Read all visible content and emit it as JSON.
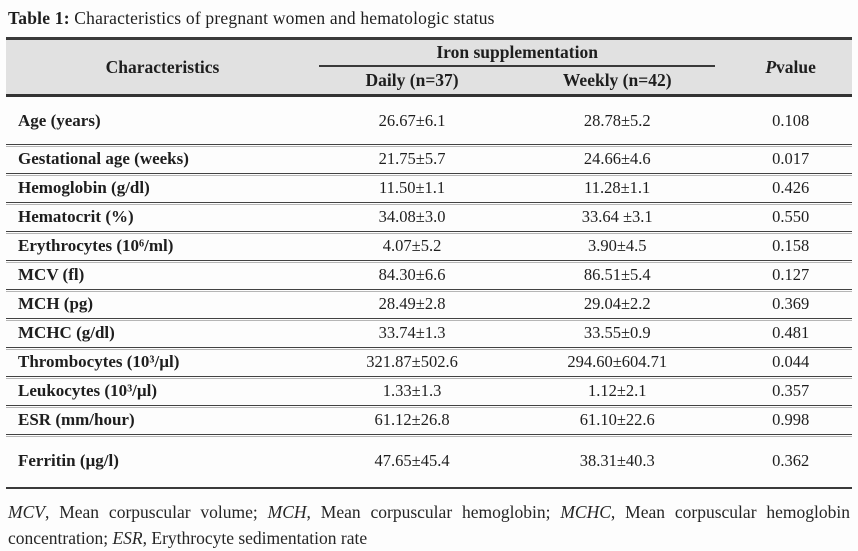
{
  "title": {
    "label": "Table 1:",
    "text": " Characteristics of pregnant women and hematologic status"
  },
  "table": {
    "header": {
      "characteristics": "Characteristics",
      "group": "Iron supplementation",
      "daily": "Daily (n=37)",
      "weekly": "Weekly (n=42)",
      "p_italic": "P",
      "p_rest": " value"
    },
    "rows": [
      {
        "label": "Age (years)",
        "daily": "26.67±6.1",
        "weekly": "28.78±5.2",
        "p": "0.108"
      },
      {
        "label": "Gestational age (weeks)",
        "daily": "21.75±5.7",
        "weekly": "24.66±4.6",
        "p": "0.017"
      },
      {
        "label": "Hemoglobin (g/dl)",
        "daily": "11.50±1.1",
        "weekly": "11.28±1.1",
        "p": "0.426"
      },
      {
        "label": "Hematocrit (%)",
        "daily": "34.08±3.0",
        "weekly": "33.64 ±3.1",
        "p": "0.550"
      },
      {
        "label": "Erythrocytes (10⁶/ml)",
        "daily": "4.07±5.2",
        "weekly": "3.90±4.5",
        "p": "0.158"
      },
      {
        "label": "MCV (fl)",
        "daily": "84.30±6.6",
        "weekly": "86.51±5.4",
        "p": "0.127"
      },
      {
        "label": "MCH (pg)",
        "daily": "28.49±2.8",
        "weekly": "29.04±2.2",
        "p": "0.369"
      },
      {
        "label": "MCHC (g/dl)",
        "daily": "33.74±1.3",
        "weekly": "33.55±0.9",
        "p": "0.481"
      },
      {
        "label": "Thrombocytes (10³/µl)",
        "daily": "321.87±502.6",
        "weekly": "294.60±604.71",
        "p": "0.044"
      },
      {
        "label": "Leukocytes (10³/µl)",
        "daily": "1.33±1.3",
        "weekly": "1.12±2.1",
        "p": "0.357"
      },
      {
        "label": "ESR (mm/hour)",
        "daily": "61.12±26.8",
        "weekly": "61.10±22.6",
        "p": "0.998"
      },
      {
        "label": "Ferritin (µg/l)",
        "daily": "47.65±45.4",
        "weekly": "38.31±40.3",
        "p": "0.362"
      }
    ]
  },
  "footnote": {
    "segments": [
      {
        "text": "MCV",
        "italic": true
      },
      {
        "text": ", Mean corpuscular volume; ",
        "italic": false
      },
      {
        "text": "MCH",
        "italic": true
      },
      {
        "text": ", Mean corpuscular hemoglobin; ",
        "italic": false
      },
      {
        "text": "MCHC",
        "italic": true
      },
      {
        "text": ", Mean corpuscular hemoglobin concentration; ",
        "italic": false
      },
      {
        "text": "ESR",
        "italic": true
      },
      {
        "text": ", Erythrocyte sedimentation rate",
        "italic": false
      }
    ]
  },
  "colors": {
    "header_bg": "#e1e1e1",
    "rule_dark": "#3a3a3a",
    "rule_light": "#b6b6b6",
    "text": "#1e1e1e"
  }
}
